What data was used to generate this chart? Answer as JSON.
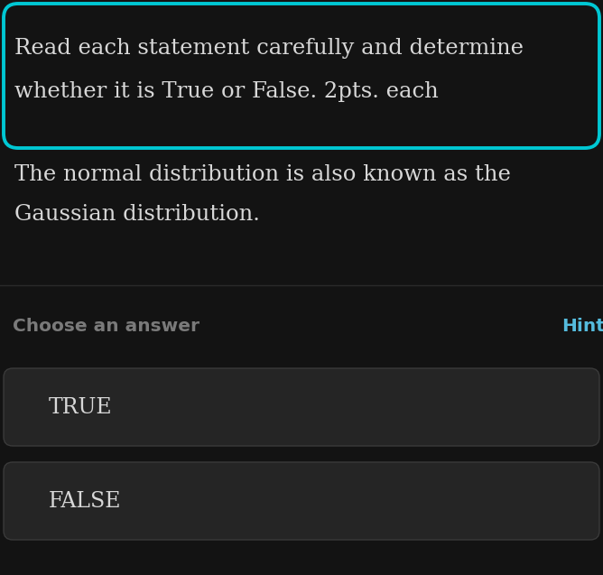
{
  "bg_color": "#131313",
  "card_border_color": "#00c8d4",
  "header_bg_color": "#131313",
  "header_text_line1": "Read each statement carefully and determine",
  "header_text_line2": "whether it is True or False. 2pts. each",
  "header_text_color": "#d8d8d8",
  "question_text_line1": "The normal distribution is also known as the",
  "question_text_line2": "Gaussian distribution.",
  "question_text_color": "#d8d8d8",
  "divider_color": "#2a2a2a",
  "choose_label": "Choose an answer",
  "choose_label_color": "#7a7a7a",
  "hint_label": "Hint",
  "hint_label_color": "#55bbdd",
  "option1": "TRUE",
  "option2": "FALSE",
  "option_text_color": "#d8d8d8",
  "option_bg_color": "#252525",
  "option_border_color": "#3a3a3a"
}
